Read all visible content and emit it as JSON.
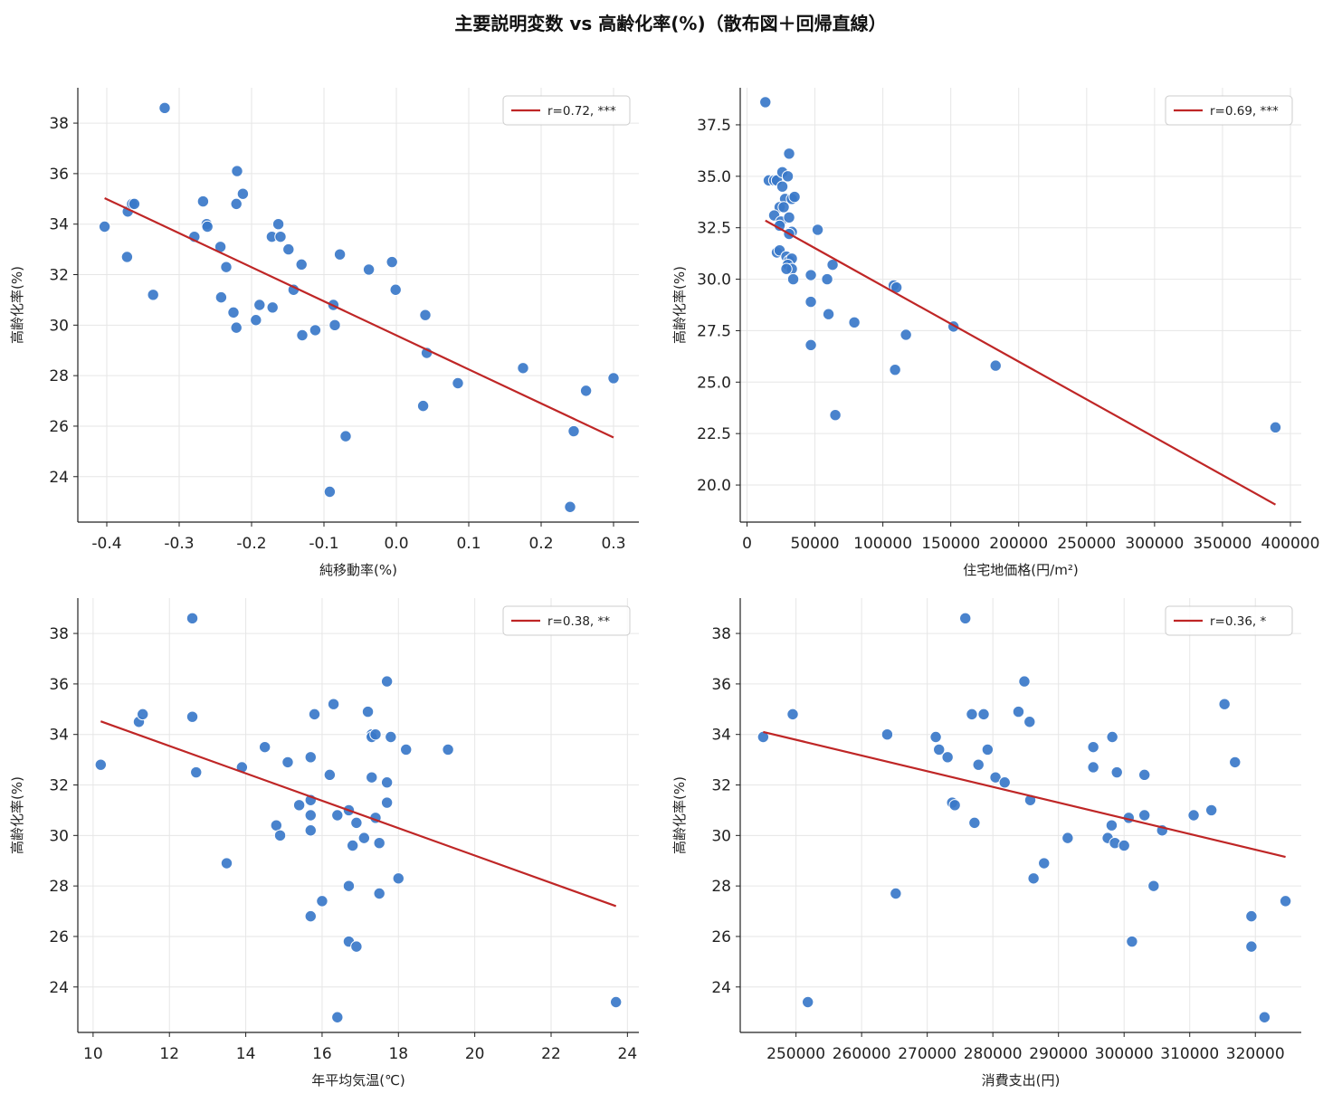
{
  "figure_title": "主要説明変数 vs 高齢化率(%)（散布図＋回帰直線）",
  "colors": {
    "points": "#3a78c9",
    "line": "#bf2626",
    "grid": "#e6e6e6",
    "axis": "#222222"
  },
  "chart_data": [
    {
      "type": "scatter",
      "xlabel": "純移動率(%)",
      "ylabel": "高齢化率(%)",
      "xlim": [
        -0.44,
        0.335
      ],
      "ylim": [
        22.2,
        39.4
      ],
      "xticks": [
        -0.4,
        -0.3,
        -0.2,
        -0.1,
        0.0,
        0.1,
        0.2,
        0.3
      ],
      "xtick_labels": [
        "-0.4",
        "-0.3",
        "-0.2",
        "-0.1",
        "0.0",
        "0.1",
        "0.2",
        "0.3"
      ],
      "yticks": [
        24,
        26,
        28,
        30,
        32,
        34,
        36,
        38
      ],
      "ytick_labels": [
        "24",
        "26",
        "28",
        "30",
        "32",
        "34",
        "36",
        "38"
      ],
      "legend": "r=0.72, ***",
      "legend_loc": "upper right",
      "grid": true,
      "points": [
        [
          -0.403,
          33.9
        ],
        [
          -0.372,
          32.7
        ],
        [
          -0.371,
          34.5
        ],
        [
          -0.365,
          34.8
        ],
        [
          -0.362,
          34.8
        ],
        [
          -0.336,
          31.2
        ],
        [
          -0.32,
          38.6
        ],
        [
          -0.279,
          33.5
        ],
        [
          -0.267,
          34.9
        ],
        [
          -0.262,
          34.0
        ],
        [
          -0.261,
          33.9
        ],
        [
          -0.243,
          33.1
        ],
        [
          -0.242,
          31.1
        ],
        [
          -0.235,
          32.3
        ],
        [
          -0.225,
          30.5
        ],
        [
          -0.221,
          29.9
        ],
        [
          -0.221,
          34.8
        ],
        [
          -0.22,
          36.1
        ],
        [
          -0.212,
          35.2
        ],
        [
          -0.194,
          30.2
        ],
        [
          -0.189,
          30.8
        ],
        [
          -0.171,
          30.7
        ],
        [
          -0.172,
          33.5
        ],
        [
          -0.163,
          34.0
        ],
        [
          -0.16,
          33.5
        ],
        [
          -0.149,
          33.0
        ],
        [
          -0.142,
          31.4
        ],
        [
          -0.13,
          29.6
        ],
        [
          -0.131,
          32.4
        ],
        [
          -0.112,
          29.8
        ],
        [
          -0.092,
          23.4
        ],
        [
          -0.087,
          30.8
        ],
        [
          -0.085,
          30.0
        ],
        [
          -0.078,
          32.8
        ],
        [
          -0.07,
          25.6
        ],
        [
          -0.038,
          32.2
        ],
        [
          -0.006,
          32.5
        ],
        [
          -0.001,
          31.4
        ],
        [
          0.037,
          26.8
        ],
        [
          0.04,
          30.4
        ],
        [
          0.042,
          28.9
        ],
        [
          0.085,
          27.7
        ],
        [
          0.175,
          28.3
        ],
        [
          0.24,
          22.8
        ],
        [
          0.245,
          25.8
        ],
        [
          0.262,
          27.4
        ],
        [
          0.3,
          27.9
        ]
      ],
      "line": [
        [
          -0.403,
          35.03
        ],
        [
          0.3,
          25.55
        ]
      ]
    },
    {
      "type": "scatter",
      "xlabel": "住宅地価格(円/m²)",
      "ylabel": "高齢化率(%)",
      "xlim": [
        -5000,
        408000
      ],
      "ylim": [
        18.2,
        39.3
      ],
      "xticks": [
        0,
        50000,
        100000,
        150000,
        200000,
        250000,
        300000,
        350000,
        400000
      ],
      "xtick_labels": [
        "0",
        "50000",
        "100000",
        "150000",
        "200000",
        "250000",
        "300000",
        "350000",
        "400000"
      ],
      "yticks": [
        20.0,
        22.5,
        25.0,
        27.5,
        30.0,
        32.5,
        35.0,
        37.5
      ],
      "ytick_labels": [
        "20.0",
        "22.5",
        "25.0",
        "27.5",
        "30.0",
        "32.5",
        "35.0",
        "37.5"
      ],
      "legend": "r=0.69, ***",
      "legend_loc": "upper right",
      "grid": true,
      "points": [
        [
          13500,
          38.6
        ],
        [
          16000,
          34.8
        ],
        [
          20000,
          34.8
        ],
        [
          22000,
          34.8
        ],
        [
          26000,
          35.2
        ],
        [
          26000,
          34.5
        ],
        [
          28000,
          33.9
        ],
        [
          30000,
          35.0
        ],
        [
          31000,
          36.1
        ],
        [
          33000,
          33.9
        ],
        [
          35000,
          34.0
        ],
        [
          24000,
          33.5
        ],
        [
          27000,
          33.5
        ],
        [
          20000,
          33.1
        ],
        [
          25000,
          32.8
        ],
        [
          31000,
          33.0
        ],
        [
          24000,
          32.6
        ],
        [
          33000,
          32.3
        ],
        [
          31000,
          32.2
        ],
        [
          22000,
          31.3
        ],
        [
          24000,
          31.4
        ],
        [
          29000,
          31.1
        ],
        [
          31000,
          30.9
        ],
        [
          33000,
          31.0
        ],
        [
          30000,
          30.7
        ],
        [
          33000,
          30.5
        ],
        [
          29000,
          30.5
        ],
        [
          34000,
          30.0
        ],
        [
          47000,
          30.2
        ],
        [
          52000,
          32.4
        ],
        [
          59000,
          30.0
        ],
        [
          63000,
          30.7
        ],
        [
          47000,
          28.9
        ],
        [
          60000,
          28.3
        ],
        [
          79000,
          27.9
        ],
        [
          47000,
          26.8
        ],
        [
          65000,
          23.4
        ],
        [
          108000,
          29.7
        ],
        [
          110000,
          29.6
        ],
        [
          117000,
          27.3
        ],
        [
          109000,
          25.6
        ],
        [
          152000,
          27.7
        ],
        [
          183000,
          25.8
        ],
        [
          389000,
          22.8
        ]
      ],
      "line": [
        [
          13500,
          32.85
        ],
        [
          389000,
          19.05
        ]
      ]
    },
    {
      "type": "scatter",
      "xlabel": "年平均気温(℃)",
      "ylabel": "高齢化率(%)",
      "xlim": [
        9.6,
        24.3
      ],
      "ylim": [
        22.2,
        39.4
      ],
      "xticks": [
        10,
        12,
        14,
        16,
        18,
        20,
        22,
        24
      ],
      "xtick_labels": [
        "10",
        "12",
        "14",
        "16",
        "18",
        "20",
        "22",
        "24"
      ],
      "yticks": [
        24,
        26,
        28,
        30,
        32,
        34,
        36,
        38
      ],
      "ytick_labels": [
        "24",
        "26",
        "28",
        "30",
        "32",
        "34",
        "36",
        "38"
      ],
      "legend": "r=0.38, **",
      "legend_loc": "upper right",
      "grid": true,
      "points": [
        [
          10.2,
          32.8
        ],
        [
          11.2,
          34.5
        ],
        [
          11.3,
          34.8
        ],
        [
          12.6,
          38.6
        ],
        [
          12.6,
          34.7
        ],
        [
          12.7,
          32.5
        ],
        [
          13.5,
          28.9
        ],
        [
          13.9,
          32.7
        ],
        [
          14.5,
          33.5
        ],
        [
          14.8,
          30.4
        ],
        [
          14.9,
          30.0
        ],
        [
          15.1,
          32.9
        ],
        [
          15.4,
          31.2
        ],
        [
          15.7,
          33.1
        ],
        [
          15.7,
          31.4
        ],
        [
          15.7,
          30.8
        ],
        [
          15.7,
          30.2
        ],
        [
          15.7,
          26.8
        ],
        [
          15.8,
          34.8
        ],
        [
          16.0,
          27.4
        ],
        [
          16.2,
          32.4
        ],
        [
          16.3,
          35.2
        ],
        [
          16.4,
          30.8
        ],
        [
          16.4,
          22.8
        ],
        [
          16.7,
          31.0
        ],
        [
          16.7,
          28.0
        ],
        [
          16.7,
          25.8
        ],
        [
          16.8,
          29.6
        ],
        [
          16.9,
          30.5
        ],
        [
          16.9,
          25.6
        ],
        [
          17.1,
          29.9
        ],
        [
          17.2,
          34.9
        ],
        [
          17.3,
          34.0
        ],
        [
          17.3,
          33.9
        ],
        [
          17.4,
          34.0
        ],
        [
          17.3,
          32.3
        ],
        [
          17.4,
          30.7
        ],
        [
          17.5,
          29.7
        ],
        [
          17.5,
          27.7
        ],
        [
          17.7,
          36.1
        ],
        [
          17.7,
          32.1
        ],
        [
          17.7,
          31.3
        ],
        [
          17.8,
          33.9
        ],
        [
          18.0,
          28.3
        ],
        [
          18.2,
          33.4
        ],
        [
          19.3,
          33.4
        ],
        [
          23.7,
          23.4
        ]
      ],
      "line": [
        [
          10.2,
          34.52
        ],
        [
          23.7,
          27.2
        ]
      ]
    },
    {
      "type": "scatter",
      "xlabel": "消費支出(円)",
      "ylabel": "高齢化率(%)",
      "xlim": [
        241500,
        327000
      ],
      "ylim": [
        22.2,
        39.4
      ],
      "xticks": [
        250000,
        260000,
        270000,
        280000,
        290000,
        300000,
        310000,
        320000
      ],
      "xtick_labels": [
        "250000",
        "260000",
        "270000",
        "280000",
        "290000",
        "300000",
        "310000",
        "320000"
      ],
      "yticks": [
        24,
        26,
        28,
        30,
        32,
        34,
        36,
        38
      ],
      "ytick_labels": [
        "24",
        "26",
        "28",
        "30",
        "32",
        "34",
        "36",
        "38"
      ],
      "legend": "r=0.36, *",
      "legend_loc": "upper right",
      "grid": true,
      "points": [
        [
          245000,
          33.9
        ],
        [
          249500,
          34.8
        ],
        [
          251800,
          23.4
        ],
        [
          263900,
          34.0
        ],
        [
          265200,
          27.7
        ],
        [
          271300,
          33.9
        ],
        [
          271800,
          33.4
        ],
        [
          273100,
          33.1
        ],
        [
          273800,
          31.3
        ],
        [
          274200,
          31.2
        ],
        [
          275800,
          38.6
        ],
        [
          276800,
          34.8
        ],
        [
          277200,
          30.5
        ],
        [
          277800,
          32.8
        ],
        [
          278600,
          34.8
        ],
        [
          279200,
          33.4
        ],
        [
          280400,
          32.3
        ],
        [
          281800,
          32.1
        ],
        [
          283900,
          34.9
        ],
        [
          284800,
          36.1
        ],
        [
          285600,
          34.5
        ],
        [
          285700,
          31.4
        ],
        [
          286200,
          28.3
        ],
        [
          287800,
          28.9
        ],
        [
          291400,
          29.9
        ],
        [
          295300,
          33.5
        ],
        [
          295300,
          32.7
        ],
        [
          297500,
          29.9
        ],
        [
          298100,
          30.4
        ],
        [
          298200,
          33.9
        ],
        [
          298600,
          29.7
        ],
        [
          298900,
          32.5
        ],
        [
          300000,
          29.6
        ],
        [
          300700,
          30.7
        ],
        [
          301200,
          25.8
        ],
        [
          303100,
          30.8
        ],
        [
          303100,
          32.4
        ],
        [
          304500,
          28.0
        ],
        [
          305800,
          30.2
        ],
        [
          310600,
          30.8
        ],
        [
          313300,
          31.0
        ],
        [
          315300,
          35.2
        ],
        [
          316900,
          32.9
        ],
        [
          319400,
          26.8
        ],
        [
          319400,
          25.6
        ],
        [
          321400,
          22.8
        ],
        [
          324600,
          27.4
        ]
      ],
      "line": [
        [
          245000,
          34.1
        ],
        [
          324600,
          29.15
        ]
      ]
    }
  ]
}
